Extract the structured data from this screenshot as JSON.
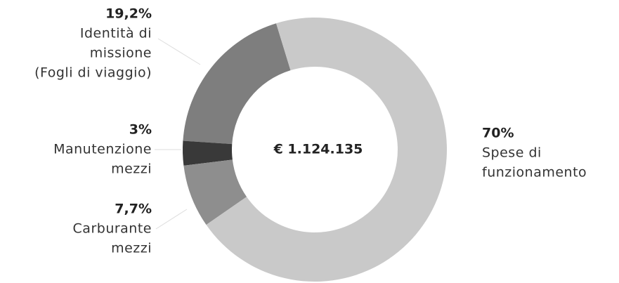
{
  "chart_data": {
    "type": "donut",
    "center_label": "€ 1.124.135",
    "categories": [
      [
        "Spese di",
        "funzionamento"
      ],
      [
        "Carburante",
        "mezzi"
      ],
      [
        "Manutenzione",
        "mezzi"
      ],
      [
        "Identità di",
        "missione",
        "(Fogli di viaggio)"
      ]
    ],
    "values": [
      70,
      7.7,
      3,
      19.2
    ],
    "value_labels": [
      "70%",
      "7,7%",
      "3%",
      "19,2%"
    ],
    "colors": [
      "#c9c9c9",
      "#8e8e8e",
      "#393939",
      "#7e7e7e"
    ]
  }
}
